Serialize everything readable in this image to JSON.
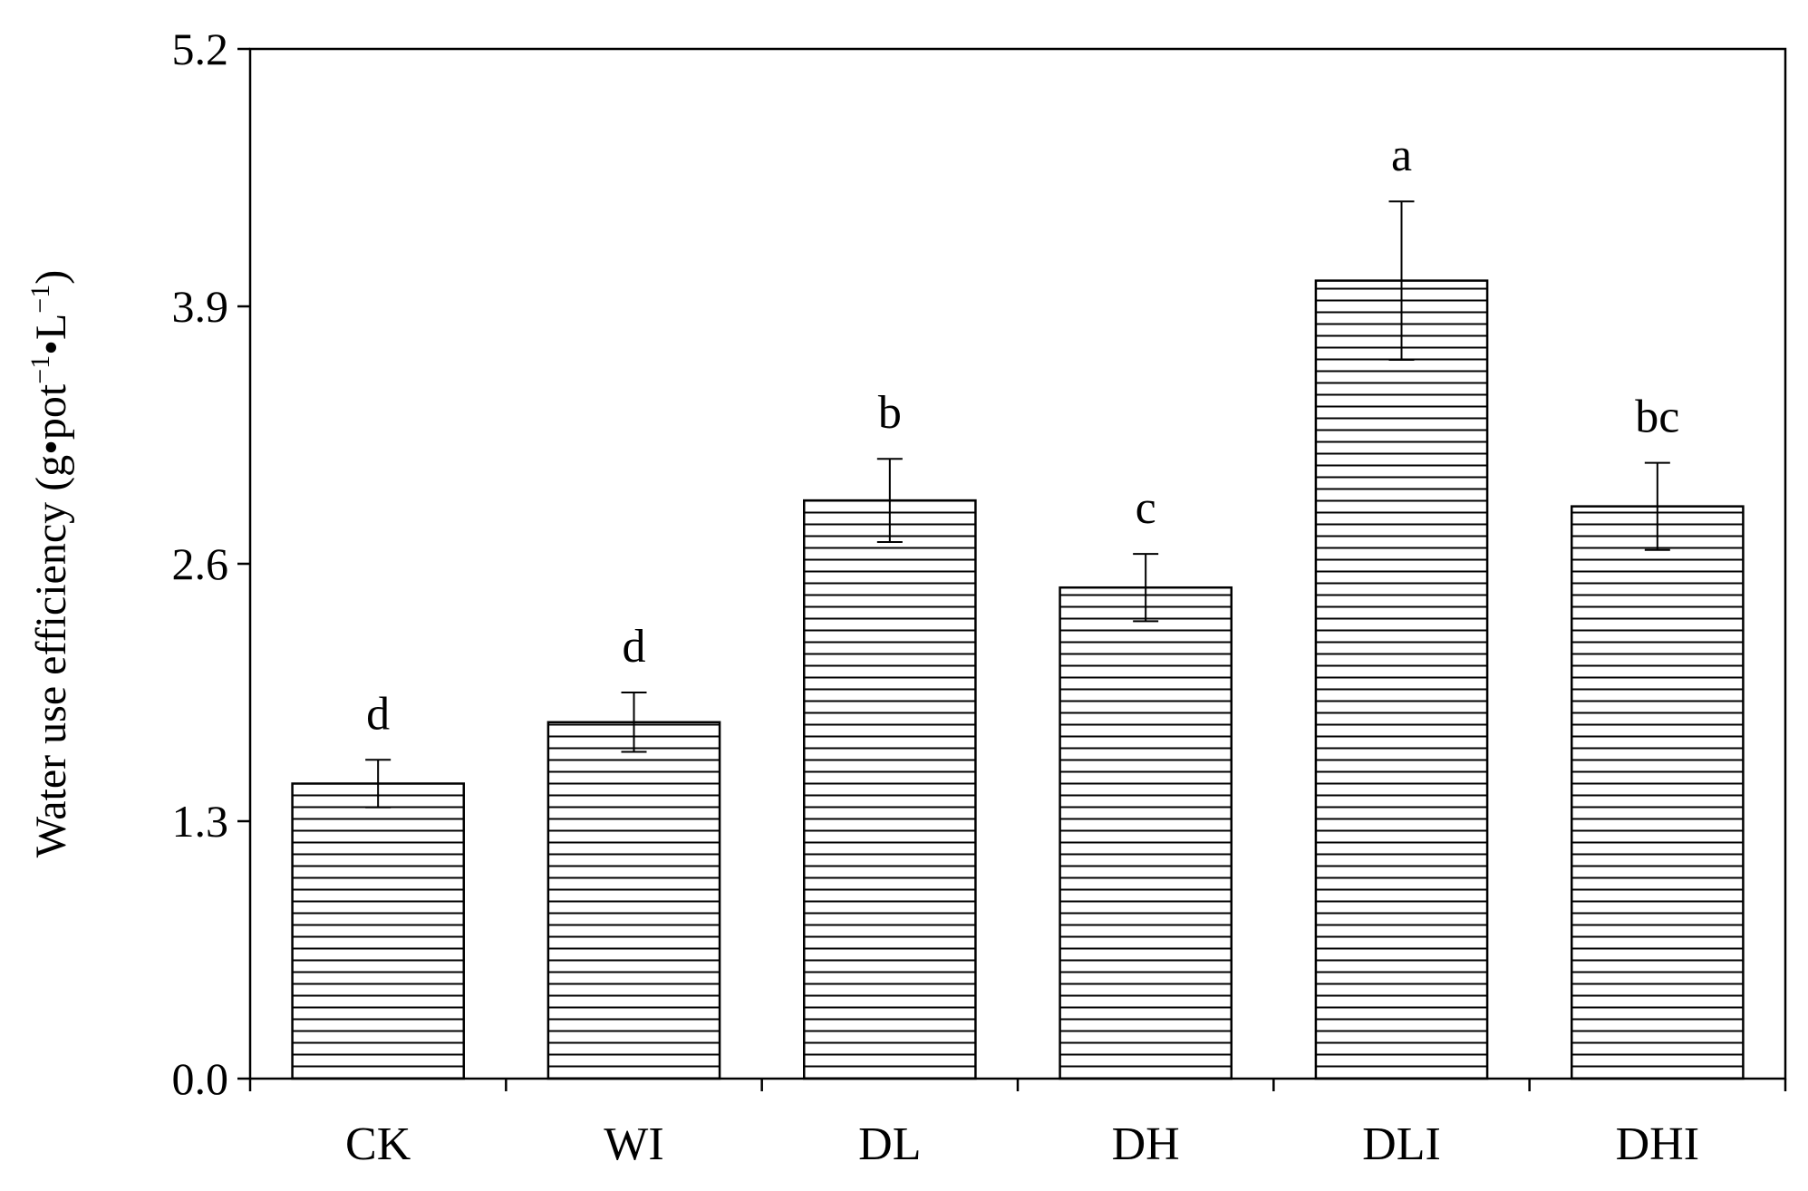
{
  "chart_data": {
    "type": "bar",
    "title": "",
    "xlabel": "",
    "ylabel": {
      "parts": [
        "Water use efficiency (g•pot",
        "−1",
        "•L",
        "−1",
        ")"
      ]
    },
    "ylim": [
      0,
      5.2
    ],
    "yticks": [
      "0.0",
      "1.3",
      "2.6",
      "3.9",
      "5.2"
    ],
    "categories": [
      "CK",
      "WI",
      "DL",
      "DH",
      "DLI",
      "DHI"
    ],
    "values": [
      1.49,
      1.8,
      2.92,
      2.48,
      4.03,
      2.89
    ],
    "errors": [
      0.12,
      0.15,
      0.21,
      0.17,
      0.4,
      0.22
    ],
    "significance": [
      "d",
      "d",
      "b",
      "c",
      "a",
      "bc"
    ],
    "grid": false,
    "legend": "none",
    "colors": {
      "bar_fill": "#ffffff",
      "hatch": "#000000",
      "axis": "#000000"
    },
    "hatch": "horizontal-lines"
  }
}
